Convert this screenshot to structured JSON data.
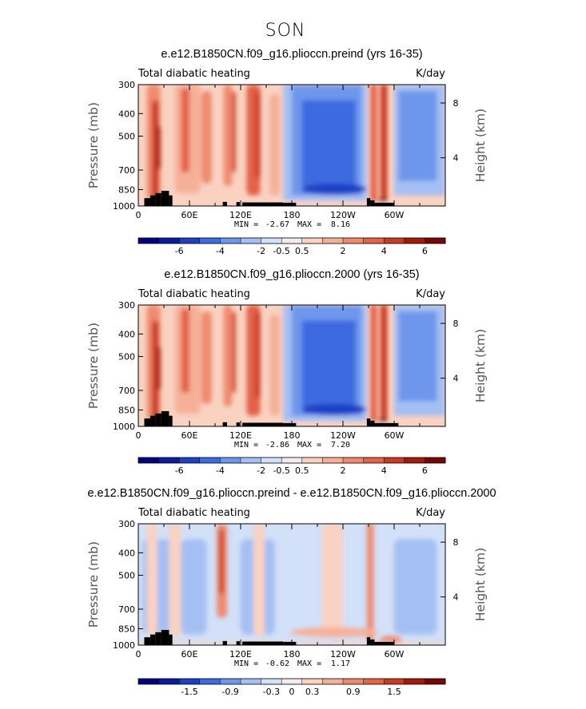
{
  "figure": {
    "title": "SON"
  },
  "chart_data": [
    {
      "type": "heatmap",
      "title": "e.e12.B1850CN.f09_g16.plioccn.preind (yrs 16-35)",
      "left_string": "Total diabatic heating",
      "right_string": "K/day",
      "ylabel": "Pressure (mb)",
      "y2label": "Height (km)",
      "x_tick_labels": [
        "0",
        "60E",
        "120E",
        "180",
        "120W",
        "60W"
      ],
      "y_tick_labels": [
        "300",
        "400",
        "500",
        "700",
        "850",
        "1000"
      ],
      "y2_tick_labels": [
        "8",
        "4"
      ],
      "min_label": "MIN =",
      "min_value": "-2.67",
      "max_label": "MAX =",
      "max_value": "8.16",
      "colorbar_labels": [
        "-6",
        "-4",
        "-2",
        "-0.5",
        "0.5",
        "2",
        "4",
        "6"
      ],
      "colorbar_colors": [
        "#000080",
        "#0a1ba0",
        "#1f3fc6",
        "#3d6be0",
        "#6e96ec",
        "#a4bff4",
        "#d2e0f8",
        "#f1ecec",
        "#f9d2c1",
        "#f6b098",
        "#f08a6e",
        "#e46246",
        "#cb3b22",
        "#a21a0e",
        "#750707"
      ],
      "levels": [
        -6,
        -5,
        -4,
        -3,
        -2,
        -1,
        -0.5,
        0,
        0.5,
        1,
        2,
        3,
        4,
        5,
        6
      ],
      "ylim": [
        1000,
        300
      ],
      "xlim": [
        0,
        360
      ]
    },
    {
      "type": "heatmap",
      "title": "e.e12.B1850CN.f09_g16.plioccn.2000 (yrs 16-35)",
      "left_string": "Total diabatic heating",
      "right_string": "K/day",
      "ylabel": "Pressure (mb)",
      "y2label": "Height (km)",
      "x_tick_labels": [
        "0",
        "60E",
        "120E",
        "180",
        "120W",
        "60W"
      ],
      "y_tick_labels": [
        "300",
        "400",
        "500",
        "700",
        "850",
        "1000"
      ],
      "y2_tick_labels": [
        "8",
        "4"
      ],
      "min_label": "MIN =",
      "min_value": "-2.86",
      "max_label": "MAX =",
      "max_value": "7.20",
      "colorbar_labels": [
        "-6",
        "-4",
        "-2",
        "-0.5",
        "0.5",
        "2",
        "4",
        "6"
      ],
      "colorbar_colors": [
        "#000080",
        "#0a1ba0",
        "#1f3fc6",
        "#3d6be0",
        "#6e96ec",
        "#a4bff4",
        "#d2e0f8",
        "#f1ecec",
        "#f9d2c1",
        "#f6b098",
        "#f08a6e",
        "#e46246",
        "#cb3b22",
        "#a21a0e",
        "#750707"
      ],
      "levels": [
        -6,
        -5,
        -4,
        -3,
        -2,
        -1,
        -0.5,
        0,
        0.5,
        1,
        2,
        3,
        4,
        5,
        6
      ],
      "ylim": [
        1000,
        300
      ],
      "xlim": [
        0,
        360
      ]
    },
    {
      "type": "heatmap",
      "title": "e.e12.B1850CN.f09_g16.plioccn.preind - e.e12.B1850CN.f09_g16.plioccn.2000",
      "left_string": "Total diabatic heating",
      "right_string": "K/day",
      "ylabel": "Pressure (mb)",
      "y2label": "Height (km)",
      "x_tick_labels": [
        "0",
        "60E",
        "120E",
        "180",
        "120W",
        "60W"
      ],
      "y_tick_labels": [
        "300",
        "400",
        "500",
        "700",
        "850",
        "1000"
      ],
      "y2_tick_labels": [
        "8",
        "4"
      ],
      "min_label": "MIN =",
      "min_value": "-0.62",
      "max_label": "MAX =",
      "max_value": "1.17",
      "colorbar_labels": [
        "-1.5",
        "-0.9",
        "-0.3",
        "0",
        "0.3",
        "0.9",
        "1.5"
      ],
      "colorbar_colors": [
        "#000080",
        "#0a1ba0",
        "#1f3fc6",
        "#3d6be0",
        "#6e96ec",
        "#a4bff4",
        "#d2e0f8",
        "#f1ecec",
        "#f9d2c1",
        "#f6b098",
        "#f08a6e",
        "#e46246",
        "#cb3b22",
        "#a21a0e",
        "#750707"
      ],
      "levels": [
        -1.8,
        -1.5,
        -1.2,
        -0.9,
        -0.6,
        -0.3,
        0,
        0.3,
        0.6,
        0.9,
        1.2,
        1.5,
        1.8
      ],
      "ylim": [
        1000,
        300
      ],
      "xlim": [
        0,
        360
      ]
    }
  ]
}
